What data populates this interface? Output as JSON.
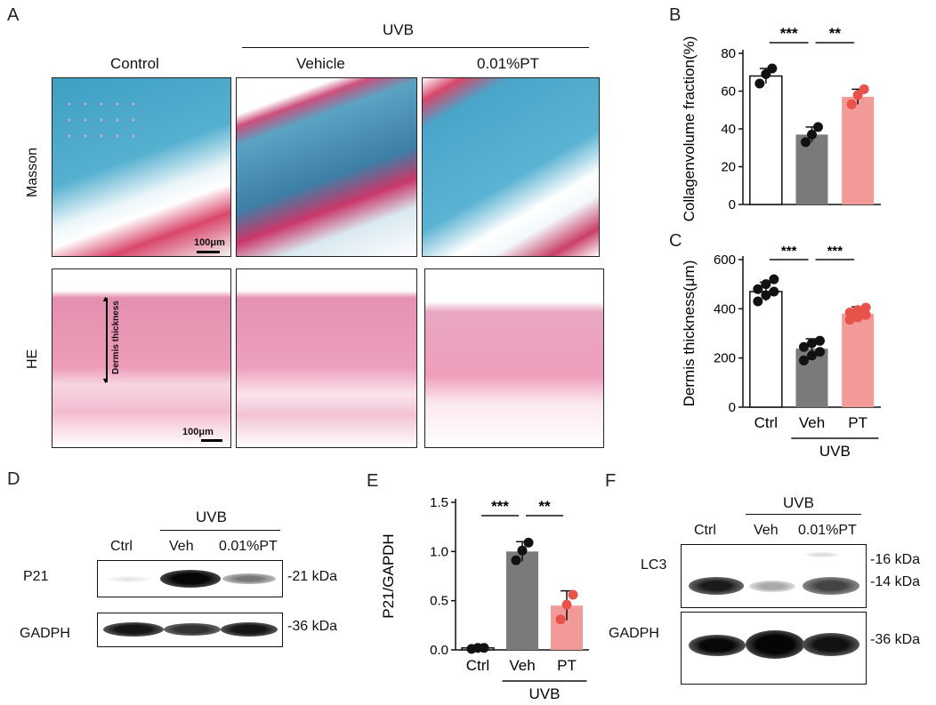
{
  "panels": {
    "A": {
      "letter": "A",
      "uvb_label": "UVB",
      "col_labels": [
        "Control",
        "Vehicle",
        "0.01%PT"
      ],
      "row_labels": [
        "Masson",
        "HE"
      ],
      "scale_bar": "100μm",
      "annotation": "Dermis thickness"
    },
    "B": {
      "letter": "B"
    },
    "C": {
      "letter": "C",
      "group_label": "UVB"
    },
    "D": {
      "letter": "D",
      "uvb_label": "UVB",
      "lanes": [
        "Ctrl",
        "Veh",
        "0.01%PT"
      ],
      "rows": [
        {
          "name": "P21",
          "kda": "-21 kDa"
        },
        {
          "name": "GADPH",
          "kda": "-36 kDa"
        }
      ]
    },
    "E": {
      "letter": "E",
      "group_label": "UVB"
    },
    "F": {
      "letter": "F",
      "uvb_label": "UVB",
      "lanes": [
        "Ctrl",
        "Veh",
        "0.01%PT"
      ],
      "rows": [
        {
          "name": "LC3",
          "kda": [
            "-16 kDa",
            "-14 kDa"
          ]
        },
        {
          "name": "GADPH",
          "kda": "-36 kDa"
        }
      ]
    }
  },
  "colors": {
    "ctrl": "#ffffff",
    "veh": "#7a7a7a",
    "pt": "#f19a97",
    "pt_dot": "#e8524a",
    "masson_blue": "#4fa9c9",
    "masson_red": "#d9466b",
    "he_pink": "#ee9cb9"
  },
  "chart_data": [
    {
      "panel": "B",
      "type": "bar",
      "categories": [
        "",
        "",
        ""
      ],
      "values": [
        68,
        37,
        57
      ],
      "errors": [
        4,
        4,
        4
      ],
      "points": [
        [
          64,
          69,
          72
        ],
        [
          33,
          37,
          41
        ],
        [
          53,
          58,
          61
        ]
      ],
      "ylabel": "Collagenvolume fraction(%)",
      "ylim": [
        0,
        80
      ],
      "yticks": [
        0,
        20,
        40,
        60,
        80
      ],
      "significance": [
        {
          "from": 0,
          "to": 1,
          "label": "***"
        },
        {
          "from": 1,
          "to": 2,
          "label": "**"
        }
      ]
    },
    {
      "panel": "C",
      "type": "bar",
      "categories": [
        "Ctrl",
        "Veh",
        "PT"
      ],
      "values": [
        470,
        238,
        380
      ],
      "errors": [
        38,
        40,
        28
      ],
      "points": [
        [
          430,
          455,
          470,
          480,
          500,
          520
        ],
        [
          190,
          210,
          225,
          245,
          260,
          270
        ],
        [
          355,
          365,
          375,
          385,
          395,
          405
        ]
      ],
      "ylabel": "Dermis thickness(μm)",
      "ylim": [
        0,
        600
      ],
      "yticks": [
        0,
        200,
        400,
        600
      ],
      "significance": [
        {
          "from": 0,
          "to": 1,
          "label": "***"
        },
        {
          "from": 1,
          "to": 2,
          "label": "***"
        }
      ]
    },
    {
      "panel": "E",
      "type": "bar",
      "categories": [
        "Ctrl",
        "Veh",
        "PT"
      ],
      "values": [
        0.02,
        1.0,
        0.45
      ],
      "errors": [
        0.01,
        0.1,
        0.15
      ],
      "points": [
        [
          0.01,
          0.02,
          0.02
        ],
        [
          0.91,
          1.01,
          1.09
        ],
        [
          0.31,
          0.46,
          0.56
        ]
      ],
      "ylabel": "P21/GAPDH",
      "ylim": [
        0,
        1.5
      ],
      "yticks": [
        "0.0",
        "0.5",
        "1.0",
        "1.5"
      ],
      "significance": [
        {
          "from": 0,
          "to": 1,
          "label": "***"
        },
        {
          "from": 1,
          "to": 2,
          "label": "**"
        }
      ]
    }
  ]
}
